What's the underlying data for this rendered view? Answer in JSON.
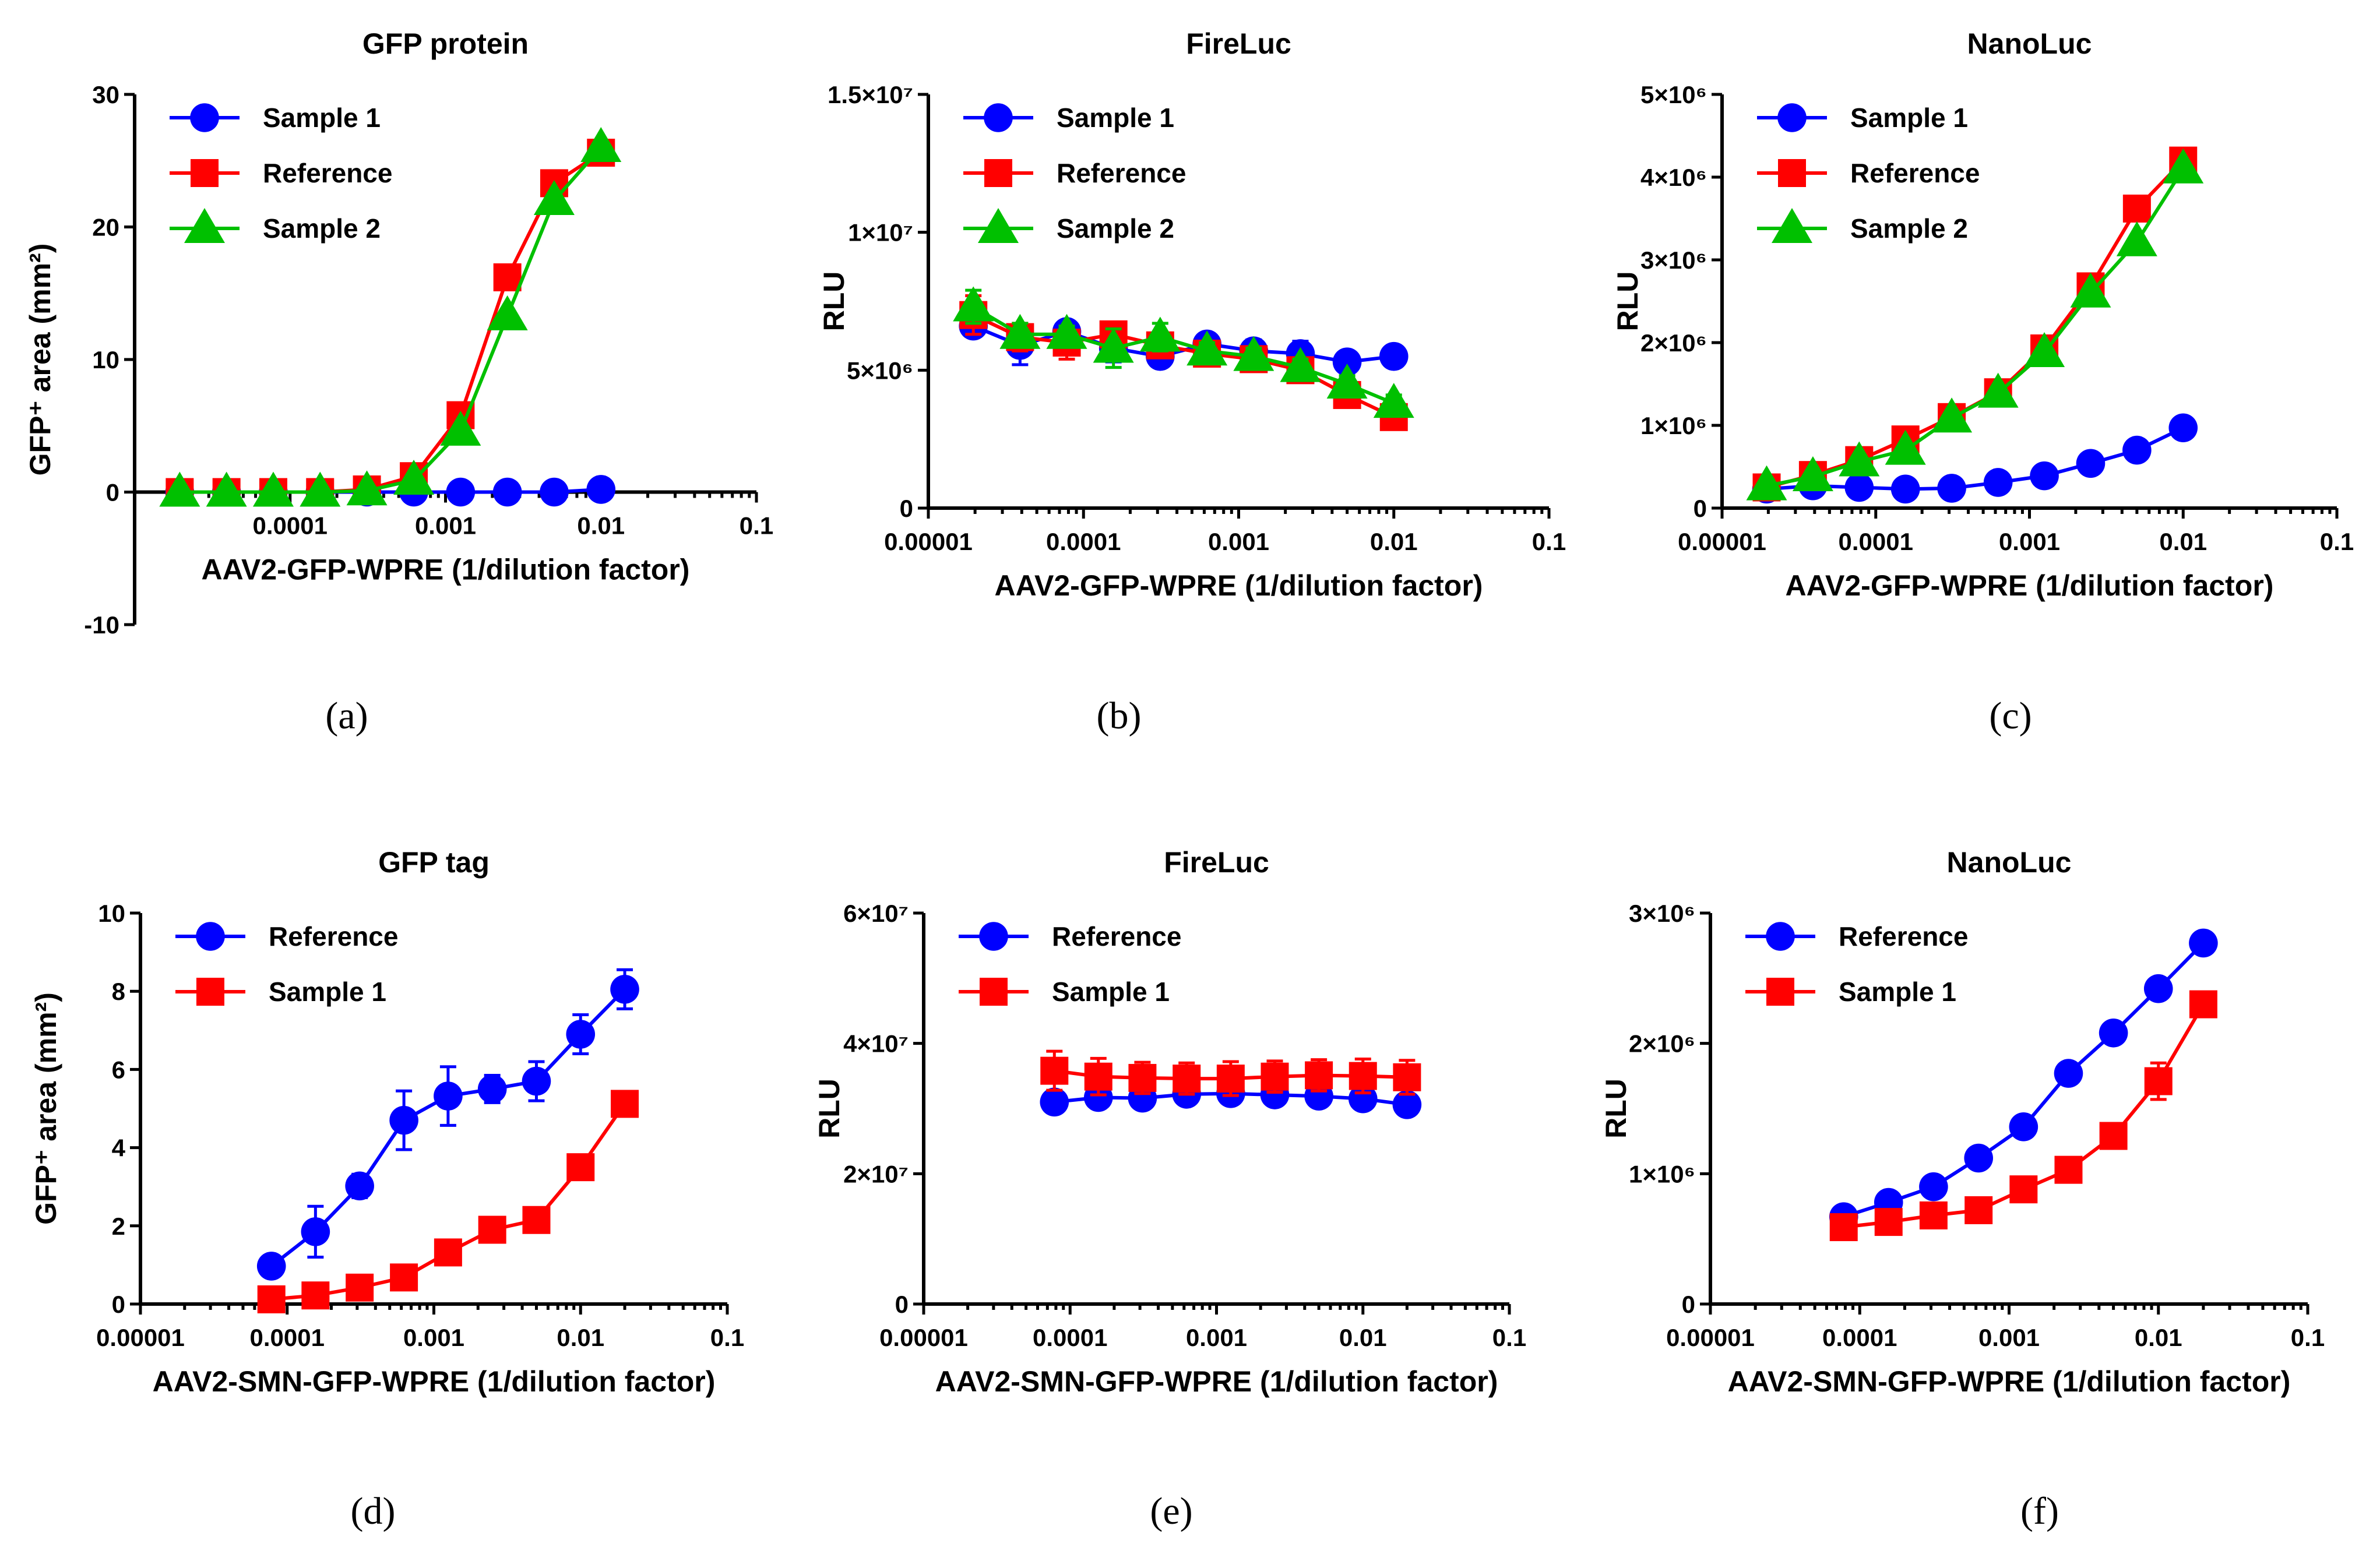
{
  "chart_data": [
    {
      "id": "a",
      "type": "scatter",
      "tag": "(a)",
      "title": "GFP protein",
      "xlabel": "AAV2-GFP-WPRE (1/dilution factor)",
      "ylabel": "GFP⁺ area (mm²)",
      "xscale": "log",
      "xlim": [
        1e-05,
        0.1
      ],
      "ylim": [
        -10,
        30
      ],
      "xticks": [
        0.0001,
        0.001,
        0.01,
        0.1
      ],
      "xtick_labels": [
        "0.0001",
        "0.001",
        "0.01",
        "0.1"
      ],
      "yticks": [
        -10,
        0,
        10,
        20,
        30
      ],
      "ytick_labels": [
        "-10",
        "0",
        "10",
        "20",
        "30"
      ],
      "xaxis_at": 0,
      "legend": "top-left",
      "series": [
        {
          "name": "Sample 1",
          "color": "#0000ff",
          "marker": "circle",
          "x": [
            1.95e-05,
            3.9e-05,
            7.8e-05,
            0.000156,
            0.000312,
            0.000625,
            0.00125,
            0.0025,
            0.005,
            0.01
          ],
          "y": [
            0,
            0,
            0,
            0,
            0,
            0,
            0,
            0,
            0,
            0.2
          ]
        },
        {
          "name": "Reference",
          "color": "#ff0000",
          "marker": "square",
          "x": [
            1.95e-05,
            3.9e-05,
            7.8e-05,
            0.000156,
            0.000312,
            0.000625,
            0.00125,
            0.0025,
            0.005,
            0.01
          ],
          "y": [
            0,
            0,
            0,
            0,
            0.2,
            1.2,
            5.8,
            16.2,
            23.3,
            25.6
          ]
        },
        {
          "name": "Sample 2",
          "color": "#00c000",
          "marker": "triangle",
          "x": [
            1.95e-05,
            3.9e-05,
            7.8e-05,
            0.000156,
            0.000312,
            0.000625,
            0.00125,
            0.0025,
            0.005,
            0.01
          ],
          "y": [
            0,
            0,
            0,
            0,
            0.1,
            0.9,
            4.6,
            13.3,
            22.0,
            26.0
          ]
        }
      ]
    },
    {
      "id": "b",
      "type": "scatter",
      "tag": "(b)",
      "title": "FireLuc",
      "xlabel": "AAV2-GFP-WPRE (1/dilution factor)",
      "ylabel": "RLU",
      "xscale": "log",
      "xlim": [
        1e-05,
        0.1
      ],
      "ylim": [
        0,
        15000000
      ],
      "xticks": [
        1e-05,
        0.0001,
        0.001,
        0.01,
        0.1
      ],
      "xtick_labels": [
        "0.00001",
        "0.0001",
        "0.001",
        "0.01",
        "0.1"
      ],
      "yticks": [
        0,
        5000000,
        10000000,
        15000000
      ],
      "ytick_labels": [
        "0",
        "5×10⁶",
        "1×10⁷",
        "1.5×10⁷"
      ],
      "xaxis_at": 0,
      "legend": "top-left",
      "series": [
        {
          "name": "Sample 1",
          "color": "#0000ff",
          "marker": "circle",
          "x": [
            1.95e-05,
            3.9e-05,
            7.8e-05,
            0.000156,
            0.000312,
            0.000625,
            0.00125,
            0.0025,
            0.005,
            0.01
          ],
          "y": [
            6600000,
            5900000,
            6400000,
            5800000,
            5500000,
            5950000,
            5700000,
            5600000,
            5300000,
            5500000
          ],
          "err": [
            300000,
            700000,
            300000,
            500000,
            350000,
            200000,
            400000,
            450000,
            150000,
            150000
          ]
        },
        {
          "name": "Reference",
          "color": "#ff0000",
          "marker": "square",
          "x": [
            1.95e-05,
            3.9e-05,
            7.8e-05,
            0.000156,
            0.000312,
            0.000625,
            0.00125,
            0.0025,
            0.005,
            0.01
          ],
          "y": [
            7000000,
            6200000,
            6000000,
            6300000,
            5900000,
            5600000,
            5400000,
            5000000,
            4100000,
            3300000
          ],
          "err": [
            700000,
            500000,
            600000,
            400000,
            400000,
            250000,
            250000,
            250000,
            400000,
            400000
          ]
        },
        {
          "name": "Sample 2",
          "color": "#00c000",
          "marker": "triangle",
          "x": [
            1.95e-05,
            3.9e-05,
            7.8e-05,
            0.000156,
            0.000312,
            0.000625,
            0.00125,
            0.0025,
            0.005,
            0.01
          ],
          "y": [
            7300000,
            6300000,
            6300000,
            5800000,
            6200000,
            5700000,
            5500000,
            5100000,
            4500000,
            3800000
          ],
          "err": [
            600000,
            400000,
            300000,
            700000,
            500000,
            300000,
            300000,
            300000,
            300000,
            300000
          ]
        }
      ]
    },
    {
      "id": "c",
      "type": "scatter",
      "tag": "(c)",
      "title": "NanoLuc",
      "xlabel": "AAV2-GFP-WPRE (1/dilution factor)",
      "ylabel": "RLU",
      "xscale": "log",
      "xlim": [
        1e-05,
        0.1
      ],
      "ylim": [
        0,
        5000000
      ],
      "xticks": [
        1e-05,
        0.0001,
        0.001,
        0.01,
        0.1
      ],
      "xtick_labels": [
        "0.00001",
        "0.0001",
        "0.001",
        "0.01",
        "0.1"
      ],
      "yticks": [
        0,
        1000000,
        2000000,
        3000000,
        4000000,
        5000000
      ],
      "ytick_labels": [
        "0",
        "1×10⁶",
        "2×10⁶",
        "3×10⁶",
        "4×10⁶",
        "5×10⁶"
      ],
      "xaxis_at": 0,
      "legend": "top-left",
      "series": [
        {
          "name": "Sample 1",
          "color": "#0000ff",
          "marker": "circle",
          "x": [
            1.95e-05,
            3.9e-05,
            7.8e-05,
            0.000156,
            0.000312,
            0.000625,
            0.00125,
            0.0025,
            0.005,
            0.01
          ],
          "y": [
            230000,
            270000,
            250000,
            230000,
            240000,
            310000,
            390000,
            540000,
            700000,
            970000
          ]
        },
        {
          "name": "Reference",
          "color": "#ff0000",
          "marker": "square",
          "x": [
            1.95e-05,
            3.9e-05,
            7.8e-05,
            0.000156,
            0.000312,
            0.000625,
            0.00125,
            0.0025,
            0.005,
            0.01
          ],
          "y": [
            250000,
            400000,
            580000,
            830000,
            1100000,
            1400000,
            1930000,
            2680000,
            3620000,
            4200000
          ]
        },
        {
          "name": "Sample 2",
          "color": "#00c000",
          "marker": "triangle",
          "x": [
            1.95e-05,
            3.9e-05,
            7.8e-05,
            0.000156,
            0.000312,
            0.000625,
            0.00125,
            0.0025,
            0.005,
            0.01
          ],
          "y": [
            270000,
            380000,
            560000,
            700000,
            1090000,
            1390000,
            1880000,
            2600000,
            3220000,
            4100000
          ]
        }
      ]
    },
    {
      "id": "d",
      "type": "scatter",
      "tag": "(d)",
      "title": "GFP tag",
      "xlabel": "AAV2-SMN-GFP-WPRE (1/dilution factor)",
      "ylabel": "GFP⁺ area (mm²)",
      "xscale": "log",
      "xlim": [
        1e-05,
        0.1
      ],
      "ylim": [
        0,
        10
      ],
      "xticks": [
        1e-05,
        0.0001,
        0.001,
        0.01,
        0.1
      ],
      "xtick_labels": [
        "0.00001",
        "0.0001",
        "0.001",
        "0.01",
        "0.1"
      ],
      "yticks": [
        0,
        2,
        4,
        6,
        8,
        10
      ],
      "ytick_labels": [
        "0",
        "2",
        "4",
        "6",
        "8",
        "10"
      ],
      "xaxis_at": 0,
      "legend": "top-left",
      "series": [
        {
          "name": "Reference",
          "color": "#0000ff",
          "marker": "circle",
          "x": [
            7.81e-05,
            0.000156,
            0.000312,
            0.000625,
            0.00125,
            0.0025,
            0.005,
            0.01,
            0.02
          ],
          "y": [
            0.97,
            1.85,
            3.02,
            4.7,
            5.32,
            5.5,
            5.7,
            6.9,
            8.05
          ],
          "err": [
            0.05,
            0.65,
            0.3,
            0.75,
            0.75,
            0.35,
            0.5,
            0.5,
            0.5
          ]
        },
        {
          "name": "Sample 1",
          "color": "#ff0000",
          "marker": "square",
          "x": [
            7.81e-05,
            0.000156,
            0.000312,
            0.000625,
            0.00125,
            0.0025,
            0.005,
            0.01,
            0.02
          ],
          "y": [
            0.12,
            0.22,
            0.42,
            0.68,
            1.32,
            1.9,
            2.15,
            3.5,
            5.12
          ],
          "err": [
            0.02,
            0.05,
            0.05,
            0.08,
            0.12,
            0.3,
            0.3,
            0.1,
            0.1
          ]
        }
      ]
    },
    {
      "id": "e",
      "type": "scatter",
      "tag": "(e)",
      "title": "FireLuc",
      "xlabel": "AAV2-SMN-GFP-WPRE (1/dilution factor)",
      "ylabel": "RLU",
      "xscale": "log",
      "xlim": [
        1e-05,
        0.1
      ],
      "ylim": [
        0,
        60000000
      ],
      "xticks": [
        1e-05,
        0.0001,
        0.001,
        0.01,
        0.1
      ],
      "xtick_labels": [
        "0.00001",
        "0.0001",
        "0.001",
        "0.01",
        "0.1"
      ],
      "yticks": [
        0,
        20000000,
        40000000,
        60000000
      ],
      "ytick_labels": [
        "0",
        "2×10⁷",
        "4×10⁷",
        "6×10⁷"
      ],
      "xaxis_at": 0,
      "legend": "top-left",
      "series": [
        {
          "name": "Reference",
          "color": "#0000ff",
          "marker": "circle",
          "x": [
            7.81e-05,
            0.000156,
            0.000312,
            0.000625,
            0.00125,
            0.0025,
            0.005,
            0.01,
            0.02
          ],
          "y": [
            31000000,
            31700000,
            31600000,
            32200000,
            32300000,
            32100000,
            31900000,
            31500000,
            30600000
          ],
          "err": [
            600000,
            600000,
            1500000,
            1000000,
            1000000,
            600000,
            600000,
            600000,
            600000
          ]
        },
        {
          "name": "Sample 1",
          "color": "#ff0000",
          "marker": "square",
          "x": [
            7.81e-05,
            0.000156,
            0.000312,
            0.000625,
            0.00125,
            0.0025,
            0.005,
            0.01,
            0.02
          ],
          "y": [
            35800000,
            34900000,
            34700000,
            34600000,
            34600000,
            34900000,
            35100000,
            35000000,
            34800000
          ],
          "err": [
            3000000,
            2800000,
            2400000,
            2400000,
            2600000,
            2400000,
            2400000,
            2600000,
            2600000
          ]
        }
      ]
    },
    {
      "id": "f",
      "type": "scatter",
      "tag": "(f)",
      "title": "NanoLuc",
      "xlabel": "AAV2-SMN-GFP-WPRE (1/dilution factor)",
      "ylabel": "RLU",
      "xscale": "log",
      "xlim": [
        1e-05,
        0.1
      ],
      "ylim": [
        0,
        3000000
      ],
      "xticks": [
        1e-05,
        0.0001,
        0.001,
        0.01,
        0.1
      ],
      "xtick_labels": [
        "0.00001",
        "0.0001",
        "0.001",
        "0.01",
        "0.1"
      ],
      "yticks": [
        0,
        1000000,
        2000000,
        3000000
      ],
      "ytick_labels": [
        "0",
        "1×10⁶",
        "2×10⁶",
        "3×10⁶"
      ],
      "xaxis_at": 0,
      "legend": "top-left",
      "series": [
        {
          "name": "Reference",
          "color": "#0000ff",
          "marker": "circle",
          "x": [
            7.81e-05,
            0.000156,
            0.000312,
            0.000625,
            0.00125,
            0.0025,
            0.005,
            0.01,
            0.02
          ],
          "y": [
            670000,
            780000,
            900000,
            1120000,
            1360000,
            1770000,
            2080000,
            2420000,
            2770000
          ],
          "err": [
            20000,
            20000,
            20000,
            20000,
            20000,
            20000,
            20000,
            20000,
            50000
          ]
        },
        {
          "name": "Sample 1",
          "color": "#ff0000",
          "marker": "square",
          "x": [
            7.81e-05,
            0.000156,
            0.000312,
            0.000625,
            0.00125,
            0.0025,
            0.005,
            0.01,
            0.02
          ],
          "y": [
            590000,
            630000,
            680000,
            720000,
            880000,
            1030000,
            1290000,
            1710000,
            2300000
          ],
          "err": [
            20000,
            20000,
            20000,
            20000,
            20000,
            20000,
            70000,
            140000,
            90000
          ]
        }
      ]
    }
  ]
}
